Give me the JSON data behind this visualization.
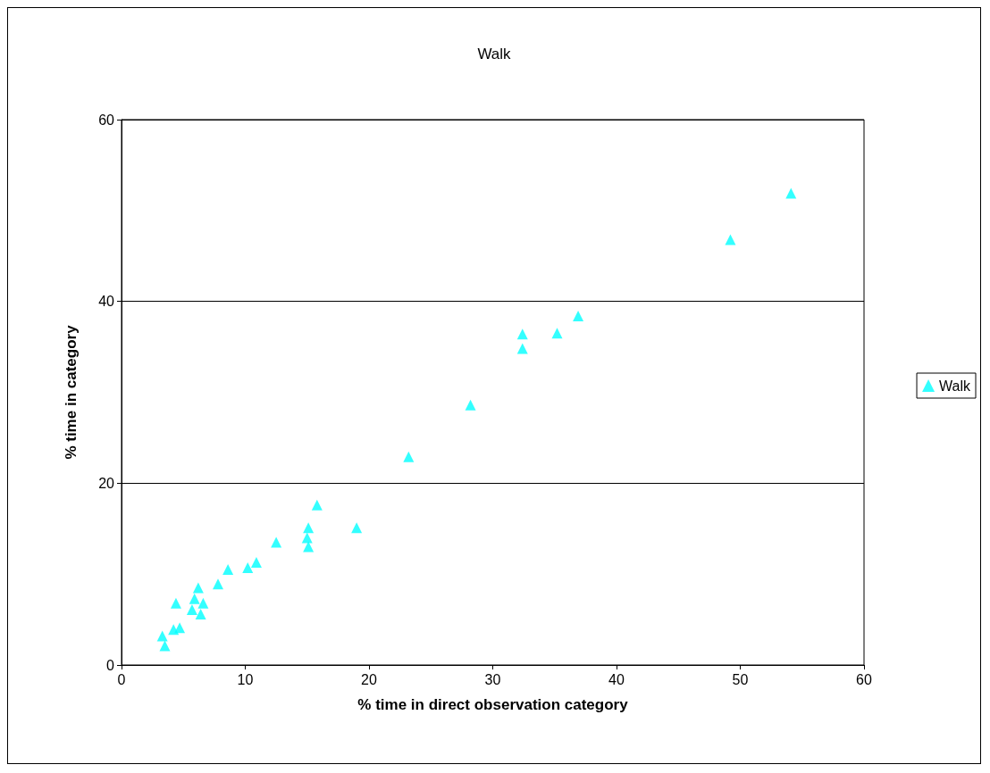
{
  "chart_data": {
    "type": "scatter",
    "title": "Walk",
    "xlabel": "% time in direct observation category",
    "ylabel": "% time in category",
    "series": [
      {
        "name": "Walk",
        "color": "#00ffff",
        "x": [
          3.3,
          3.5,
          4.2,
          4.7,
          4.4,
          6.2,
          5.9,
          6.6,
          5.7,
          6.4,
          7.8,
          8.6,
          10.2,
          10.9,
          12.5,
          15.1,
          15.0,
          15.1,
          15.8,
          19.0,
          23.2,
          28.2,
          32.4,
          32.4,
          35.2,
          36.9,
          49.2,
          54.1
        ],
        "values": [
          3.2,
          2.1,
          3.9,
          4.1,
          6.8,
          8.5,
          7.3,
          6.8,
          6.1,
          5.6,
          8.9,
          10.5,
          10.7,
          11.3,
          13.5,
          15.1,
          14.0,
          13.0,
          17.6,
          15.1,
          22.9,
          28.6,
          36.4,
          34.8,
          36.5,
          38.4,
          46.8,
          51.9
        ]
      }
    ],
    "xlim": [
      0,
      60
    ],
    "xticks": [
      0,
      10,
      20,
      30,
      40,
      50,
      60
    ],
    "ylim": [
      0,
      60
    ],
    "yticks": [
      0,
      20,
      40,
      60
    ],
    "grid": "y",
    "legend": "right",
    "marker": "triangle"
  }
}
